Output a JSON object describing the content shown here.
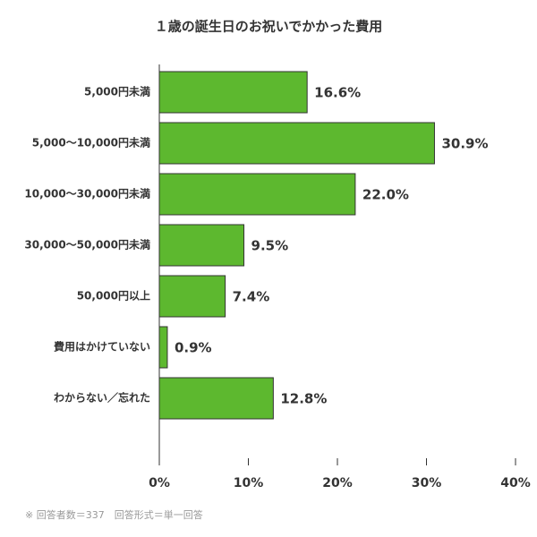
{
  "chart_data": {
    "type": "barh",
    "title": "１歳の誕生日のお祝いでかかった費用",
    "categories": [
      "5,000円未満",
      "5,000〜10,000円未満",
      "10,000〜30,000円未満",
      "30,000〜50,000円未満",
      "50,000円以上",
      "費用はかけていない",
      "わからない／忘れた"
    ],
    "values": [
      16.6,
      30.9,
      22.0,
      9.5,
      7.4,
      0.9,
      12.8
    ],
    "value_labels": [
      "16.6%",
      "30.9%",
      "22.0%",
      "9.5%",
      "7.4%",
      "0.9%",
      "12.8%"
    ],
    "color": "#5db82f",
    "xlim": [
      0,
      40
    ],
    "xticks": [
      {
        "value": 0,
        "label": "0%"
      },
      {
        "value": 10,
        "label": "10%"
      },
      {
        "value": 20,
        "label": "20%"
      },
      {
        "value": 30,
        "label": "30%"
      },
      {
        "value": 40,
        "label": "40%"
      }
    ],
    "note": "※ 回答者数＝337　回答形式＝単一回答"
  }
}
